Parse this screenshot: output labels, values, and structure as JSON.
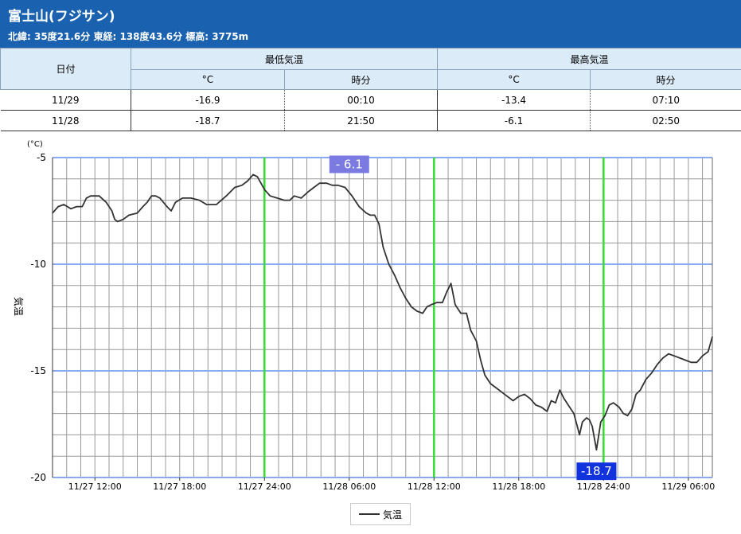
{
  "header": {
    "title": "富士山(フジサン)",
    "subtitle": "北緯: 35度21.6分 東経: 138度43.6分 標高: 3775m"
  },
  "summary": {
    "col_date": "日付",
    "col_min": "最低気温",
    "col_max": "最高気温",
    "sub_unit": "°C",
    "sub_time": "時分",
    "rows": [
      {
        "date": "11/29",
        "min": "-16.9",
        "min_time": "00:10",
        "max": "-13.4",
        "max_time": "07:10"
      },
      {
        "date": "11/28",
        "min": "-18.7",
        "min_time": "21:50",
        "max": "-6.1",
        "max_time": "02:50"
      }
    ]
  },
  "colors": {
    "header_bg": "#1a62b0",
    "line": "#333333",
    "major_grid": "#8aaaf0",
    "day_boundary": "#33dd33",
    "max_label_bg": "#7a7ae0",
    "min_label_bg": "#1133dd"
  },
  "chart_data": {
    "type": "line",
    "y_unit": "(°C)",
    "ylabel": "気温",
    "ylim": [
      -20,
      -5
    ],
    "y_ticks": [
      -5,
      -10,
      -15,
      -20
    ],
    "x_range_hours": [
      0,
      46.7
    ],
    "x_ticks": [
      {
        "h": 3,
        "label": "11/27 12:00"
      },
      {
        "h": 9,
        "label": "11/27 18:00"
      },
      {
        "h": 15,
        "label": "11/27 24:00"
      },
      {
        "h": 21,
        "label": "11/28 06:00"
      },
      {
        "h": 27,
        "label": "11/28 12:00"
      },
      {
        "h": 33,
        "label": "11/28 18:00"
      },
      {
        "h": 39,
        "label": "11/28 24:00"
      },
      {
        "h": 45,
        "label": "11/29 06:00"
      }
    ],
    "day_boundaries_hours": [
      15,
      27,
      39
    ],
    "annotations": [
      {
        "h": 21,
        "value": -6.1,
        "label": "- 6.1",
        "kind": "max"
      },
      {
        "h": 38.5,
        "value": -18.7,
        "label": "-18.7",
        "kind": "min"
      }
    ],
    "series": [
      {
        "name": "気温",
        "points": [
          [
            0,
            -7.6
          ],
          [
            0.4,
            -7.3
          ],
          [
            0.8,
            -7.2
          ],
          [
            1.3,
            -7.4
          ],
          [
            1.7,
            -7.3
          ],
          [
            2.1,
            -7.3
          ],
          [
            2.4,
            -6.9
          ],
          [
            2.7,
            -6.8
          ],
          [
            3.3,
            -6.8
          ],
          [
            3.8,
            -7.1
          ],
          [
            4.2,
            -7.5
          ],
          [
            4.4,
            -7.9
          ],
          [
            4.6,
            -8.0
          ],
          [
            5.0,
            -7.9
          ],
          [
            5.4,
            -7.7
          ],
          [
            6.0,
            -7.6
          ],
          [
            6.4,
            -7.3
          ],
          [
            6.7,
            -7.1
          ],
          [
            7.0,
            -6.8
          ],
          [
            7.3,
            -6.8
          ],
          [
            7.6,
            -6.9
          ],
          [
            8.1,
            -7.3
          ],
          [
            8.4,
            -7.5
          ],
          [
            8.7,
            -7.1
          ],
          [
            9.2,
            -6.9
          ],
          [
            9.8,
            -6.9
          ],
          [
            10.4,
            -7.0
          ],
          [
            10.9,
            -7.2
          ],
          [
            11.6,
            -7.2
          ],
          [
            12.3,
            -6.8
          ],
          [
            12.9,
            -6.4
          ],
          [
            13.4,
            -6.3
          ],
          [
            13.8,
            -6.1
          ],
          [
            14.2,
            -5.8
          ],
          [
            14.5,
            -5.9
          ],
          [
            15.0,
            -6.5
          ],
          [
            15.4,
            -6.8
          ],
          [
            15.9,
            -6.9
          ],
          [
            16.4,
            -7.0
          ],
          [
            16.8,
            -7.0
          ],
          [
            17.1,
            -6.8
          ],
          [
            17.6,
            -6.9
          ],
          [
            18.1,
            -6.6
          ],
          [
            18.5,
            -6.4
          ],
          [
            18.9,
            -6.2
          ],
          [
            19.4,
            -6.2
          ],
          [
            19.8,
            -6.3
          ],
          [
            20.2,
            -6.3
          ],
          [
            20.7,
            -6.4
          ],
          [
            21.2,
            -6.8
          ],
          [
            21.7,
            -7.3
          ],
          [
            22.2,
            -7.6
          ],
          [
            22.5,
            -7.7
          ],
          [
            22.8,
            -7.7
          ],
          [
            23.1,
            -8.1
          ],
          [
            23.4,
            -9.2
          ],
          [
            23.8,
            -10.0
          ],
          [
            24.2,
            -10.5
          ],
          [
            24.6,
            -11.1
          ],
          [
            25.0,
            -11.6
          ],
          [
            25.4,
            -12.0
          ],
          [
            25.8,
            -12.2
          ],
          [
            26.2,
            -12.3
          ],
          [
            26.5,
            -12.0
          ],
          [
            26.8,
            -11.9
          ],
          [
            27.2,
            -11.8
          ],
          [
            27.6,
            -11.8
          ],
          [
            27.9,
            -11.3
          ],
          [
            28.2,
            -10.9
          ],
          [
            28.5,
            -11.9
          ],
          [
            28.9,
            -12.3
          ],
          [
            29.3,
            -12.3
          ],
          [
            29.6,
            -13.1
          ],
          [
            30.0,
            -13.6
          ],
          [
            30.3,
            -14.5
          ],
          [
            30.6,
            -15.2
          ],
          [
            31.0,
            -15.6
          ],
          [
            31.4,
            -15.8
          ],
          [
            31.8,
            -16.0
          ],
          [
            32.2,
            -16.2
          ],
          [
            32.6,
            -16.4
          ],
          [
            33.0,
            -16.2
          ],
          [
            33.4,
            -16.1
          ],
          [
            33.8,
            -16.3
          ],
          [
            34.2,
            -16.6
          ],
          [
            34.6,
            -16.7
          ],
          [
            35.0,
            -16.9
          ],
          [
            35.3,
            -16.4
          ],
          [
            35.6,
            -16.5
          ],
          [
            35.9,
            -15.9
          ],
          [
            36.2,
            -16.3
          ],
          [
            36.6,
            -16.7
          ],
          [
            36.9,
            -17.0
          ],
          [
            37.1,
            -17.5
          ],
          [
            37.3,
            -18.0
          ],
          [
            37.5,
            -17.4
          ],
          [
            37.8,
            -17.2
          ],
          [
            38.0,
            -17.3
          ],
          [
            38.2,
            -17.6
          ],
          [
            38.5,
            -18.7
          ],
          [
            38.8,
            -17.4
          ],
          [
            39.1,
            -17.1
          ],
          [
            39.4,
            -16.6
          ],
          [
            39.7,
            -16.5
          ],
          [
            40.1,
            -16.7
          ],
          [
            40.4,
            -17.0
          ],
          [
            40.7,
            -17.1
          ],
          [
            41.0,
            -16.8
          ],
          [
            41.3,
            -16.1
          ],
          [
            41.6,
            -15.9
          ],
          [
            42.0,
            -15.4
          ],
          [
            42.4,
            -15.1
          ],
          [
            42.8,
            -14.7
          ],
          [
            43.2,
            -14.4
          ],
          [
            43.6,
            -14.2
          ],
          [
            44.0,
            -14.3
          ],
          [
            44.4,
            -14.4
          ],
          [
            44.8,
            -14.5
          ],
          [
            45.2,
            -14.6
          ],
          [
            45.6,
            -14.6
          ],
          [
            46.0,
            -14.3
          ],
          [
            46.4,
            -14.1
          ],
          [
            46.7,
            -13.4
          ]
        ]
      }
    ]
  }
}
